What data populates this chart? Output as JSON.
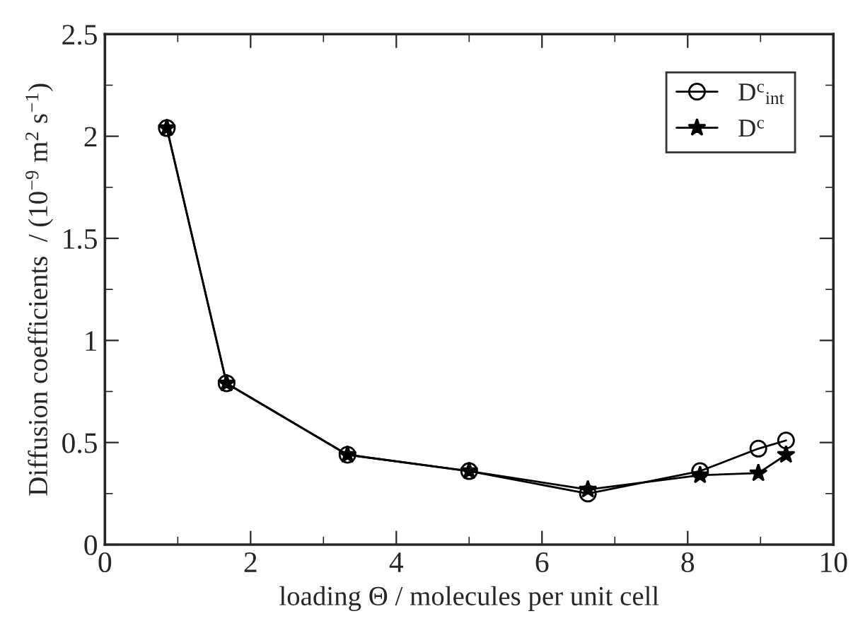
{
  "chart_data": {
    "type": "line",
    "xlabel": "loading Θ / molecules per unit cell",
    "ylabel": "Diffusion coefficients  / (10$^{−9}$ m$^{2}$ s$^{−1}$)",
    "x": [
      0.85,
      1.67,
      3.33,
      5.0,
      6.63,
      8.17,
      8.97,
      9.35
    ],
    "series": [
      {
        "name": "D$^{c}$$_{int}$",
        "color": "#000000",
        "marker": "circle",
        "values": [
          2.04,
          0.79,
          0.44,
          0.36,
          0.25,
          0.36,
          0.47,
          0.51
        ]
      },
      {
        "name": "D$^{c}$",
        "color": "#000000",
        "marker": "star",
        "values": [
          2.04,
          0.79,
          0.44,
          0.36,
          0.27,
          0.34,
          0.35,
          0.44
        ]
      }
    ],
    "xlim": [
      0,
      10
    ],
    "xticks": [
      0,
      2,
      4,
      6,
      8,
      10
    ],
    "ylim": [
      0,
      2.5
    ],
    "yticks": [
      0,
      0.5,
      1,
      1.5,
      2,
      2.5
    ],
    "grid": false,
    "legend": "top right",
    "line_style": "solid"
  }
}
